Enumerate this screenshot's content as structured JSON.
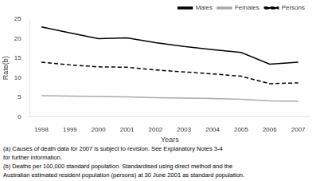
{
  "chart_data": {
    "type": "line",
    "x": [
      1998,
      1999,
      2000,
      2001,
      2002,
      2003,
      2004,
      2005,
      2006,
      2007
    ],
    "series": [
      {
        "name": "Males",
        "color": "#000000",
        "line_style": "solid",
        "values": [
          23.0,
          21.5,
          20.0,
          20.2,
          19.0,
          18.0,
          17.2,
          16.5,
          13.5,
          14.0
        ]
      },
      {
        "name": "Females",
        "color": "#aaaaaa",
        "line_style": "solid",
        "values": [
          5.4,
          5.3,
          5.2,
          5.1,
          4.9,
          4.8,
          4.7,
          4.5,
          4.1,
          4.0
        ]
      },
      {
        "name": "Persons",
        "color": "#000000",
        "line_style": "dashed",
        "values": [
          14.0,
          13.3,
          12.8,
          12.7,
          12.0,
          11.5,
          11.0,
          10.4,
          8.5,
          8.7
        ]
      }
    ],
    "xlabel": "Years",
    "ylabel": "Rate(b)",
    "xlim": [
      1997.6,
      2007.4
    ],
    "xticks": [
      1998,
      1999,
      2000,
      2001,
      2002,
      2003,
      2004,
      2005,
      2006,
      2007
    ],
    "ylim": [
      0,
      25
    ],
    "yticks": [
      0,
      5,
      10,
      15,
      20,
      25
    ],
    "grid": false,
    "legend": "upper right",
    "annotations": [
      "(a) Causes of death data for 2007 is subject to revision. See Explanatory Notes 3-4",
      "for further information.",
      "(b) Deaths per 100,000 standard population. Standardised using direct method and the",
      "Australian estimated resident population (persons) at 30 June 2001 as standard population."
    ]
  }
}
